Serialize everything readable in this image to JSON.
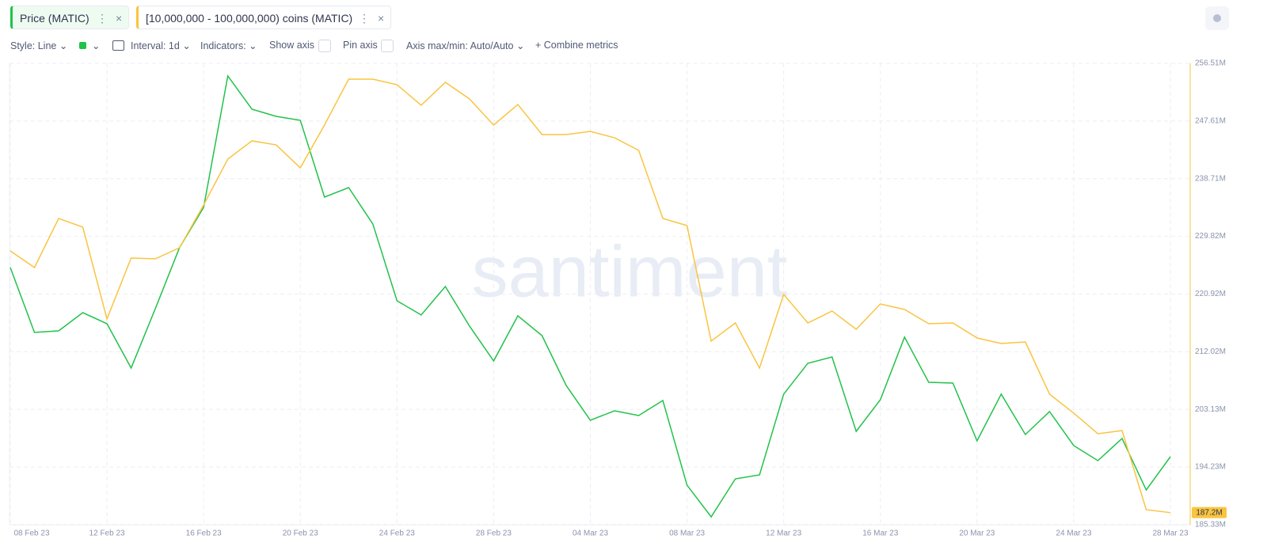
{
  "toolbar": {
    "style": "Style: Line",
    "interval": "Interval: 1d",
    "indicators": "Indicators:",
    "show_axis": "Show axis",
    "pin_axis": "Pin axis",
    "axis_minmax": "Axis max/min: Auto/Auto",
    "combine": "Combine metrics"
  },
  "watermark": "santiment",
  "chart_data": {
    "type": "line",
    "categories": [
      "08 Feb 23",
      null,
      null,
      null,
      "12 Feb 23",
      null,
      null,
      null,
      "16 Feb 23",
      null,
      null,
      null,
      "20 Feb 23",
      null,
      null,
      null,
      "24 Feb 23",
      null,
      null,
      null,
      "28 Feb 23",
      null,
      null,
      null,
      "04 Mar 23",
      null,
      null,
      null,
      "08 Mar 23",
      null,
      null,
      null,
      "12 Mar 23",
      null,
      null,
      null,
      "16 Mar 23",
      null,
      null,
      null,
      "20 Mar 23",
      null,
      null,
      null,
      "24 Mar 23",
      null,
      null,
      null,
      "28 Mar 23"
    ],
    "series": [
      {
        "name": "Price (MATIC)",
        "color": "#21c24a",
        "values": [
          225.01,
          215.0,
          215.24,
          218.05,
          216.34,
          209.51,
          218.66,
          228.06,
          234.29,
          254.56,
          249.43,
          248.33,
          247.72,
          235.88,
          237.34,
          231.73,
          219.88,
          217.69,
          222.08,
          215.98,
          210.6,
          217.56,
          214.51,
          206.82,
          201.45,
          202.91,
          202.18,
          204.5,
          191.44,
          186.55,
          192.41,
          193.02,
          205.48,
          210.24,
          211.21,
          199.74,
          204.62,
          214.27,
          207.31,
          207.19,
          198.27,
          205.48,
          199.25,
          202.79,
          197.54,
          195.22,
          198.64,
          190.7,
          195.83
        ]
      },
      {
        "name": "[10,000,000 - 100,000,000) coins (MATIC)",
        "color": "#f9c440",
        "values": [
          227.57,
          225.01,
          232.58,
          231.24,
          217.07,
          226.48,
          226.35,
          228.06,
          234.66,
          241.74,
          244.55,
          243.93,
          240.39,
          246.99,
          254.07,
          254.07,
          253.21,
          250.04,
          253.58,
          251.02,
          246.99,
          250.16,
          245.52,
          245.52,
          246.01,
          245.03,
          243.08,
          232.58,
          231.48,
          213.66,
          216.46,
          209.51,
          220.86,
          216.46,
          218.3,
          215.49,
          219.39,
          218.54,
          216.34,
          216.46,
          214.14,
          213.29,
          213.53,
          205.48,
          202.55,
          199.37,
          199.86,
          187.65,
          187.2
        ]
      }
    ],
    "ylim": [
      185.33,
      256.51
    ],
    "yticks": [
      {
        "value": 256.51,
        "label": "256.51M"
      },
      {
        "value": 247.61,
        "label": "247.61M"
      },
      {
        "value": 238.71,
        "label": "238.71M"
      },
      {
        "value": 229.82,
        "label": "229.82M"
      },
      {
        "value": 220.92,
        "label": "220.92M"
      },
      {
        "value": 212.02,
        "label": "212.02M"
      },
      {
        "value": 203.13,
        "label": "203.13M"
      },
      {
        "value": 194.23,
        "label": "194.23M"
      },
      {
        "value": 185.33,
        "label": "185.33M"
      }
    ],
    "last_label": {
      "value": 187.2,
      "label": "187.2M"
    },
    "grid": true
  }
}
